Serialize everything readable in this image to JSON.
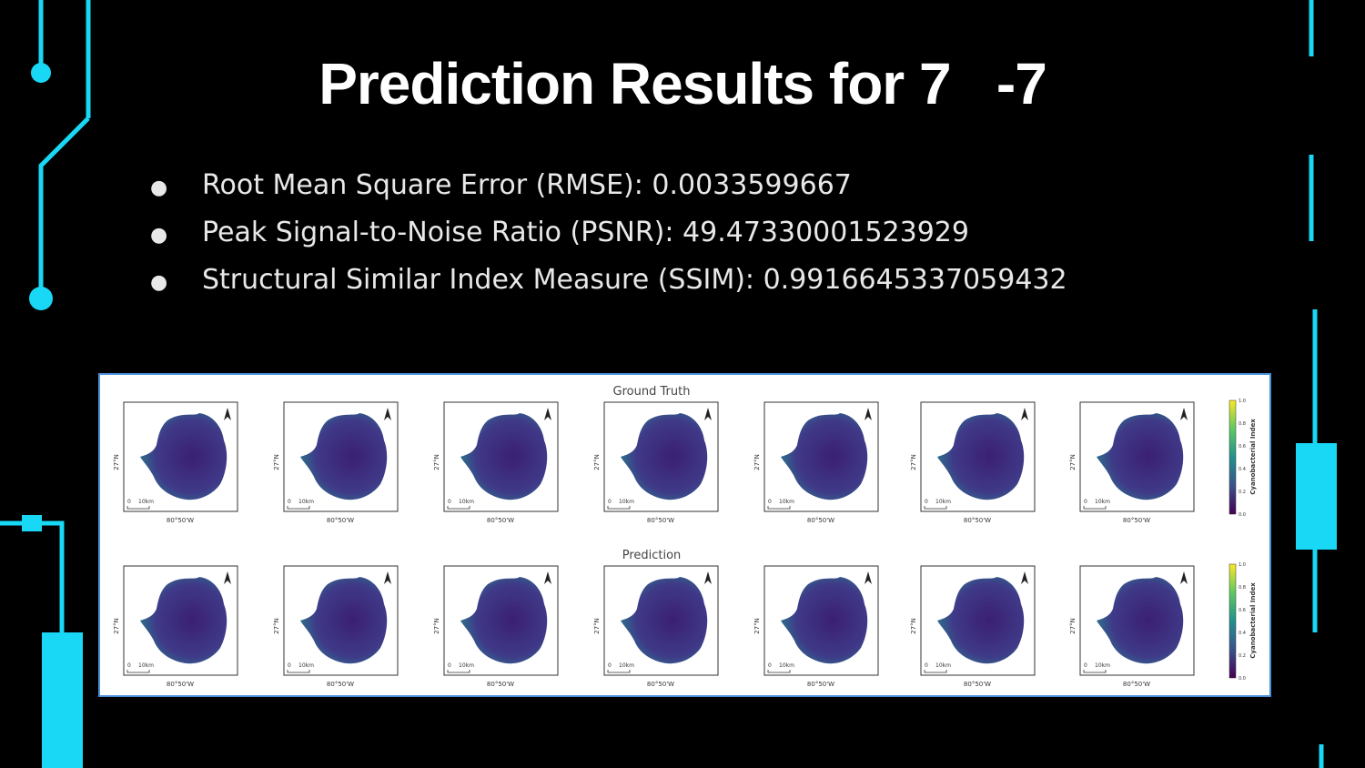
{
  "slide": {
    "title": "Prediction Results for 7   -7",
    "bullets": [
      "Root Mean Square Error (RMSE): 0.0033599667",
      "Peak Signal-to-Noise Ratio (PSNR): 49.47330001523929",
      "Structural Similar Index Measure (SSIM): 0.9916645337059432"
    ],
    "figure": {
      "rows": [
        "Ground Truth",
        "Prediction"
      ],
      "lat_label": "27°N",
      "lon_label": "80°50'W",
      "scale_zero": "0",
      "scale_label": "10km",
      "colorbar_label": "Cyanobacterial Index",
      "colorbar_ticks": [
        "0.0",
        "0.2",
        "0.4",
        "0.6",
        "0.8",
        "1.0"
      ]
    }
  }
}
